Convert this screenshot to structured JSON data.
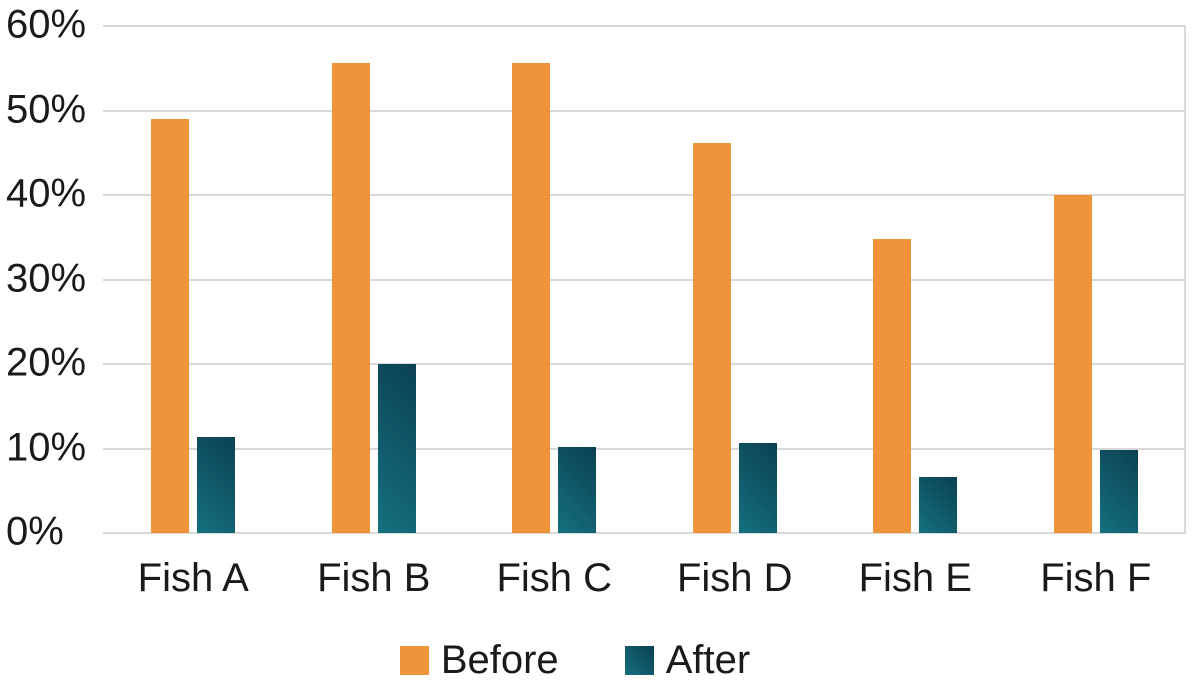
{
  "chart_data": {
    "type": "bar",
    "title": "",
    "categories": [
      "Fish A",
      "Fish B",
      "Fish C",
      "Fish D",
      "Fish E",
      "Fish F"
    ],
    "series": [
      {
        "name": "Before",
        "values": [
          49.0,
          55.6,
          55.6,
          46.2,
          34.8,
          40.0
        ]
      },
      {
        "name": "After",
        "values": [
          11.4,
          20.0,
          10.2,
          10.7,
          6.6,
          9.8
        ]
      }
    ],
    "ylim": [
      0,
      60
    ],
    "ytick_step": 10,
    "ytick_labels": [
      "0%",
      "10%",
      "20%",
      "30%",
      "40%",
      "50%",
      "60%"
    ],
    "value_unit": "%",
    "grid": "horizontal",
    "legend_position": "bottom"
  },
  "legend": {
    "items": [
      {
        "label": "Before",
        "swatch": "orange-square"
      },
      {
        "label": "After",
        "swatch": "teal-square"
      }
    ]
  },
  "colors": {
    "before_bar": "#f0943b",
    "after_bar_light": "#15707e",
    "after_bar_dark": "#0b4154",
    "gridline": "#d9d9d9",
    "text": "#1a1a1a",
    "background": "#ffffff"
  }
}
